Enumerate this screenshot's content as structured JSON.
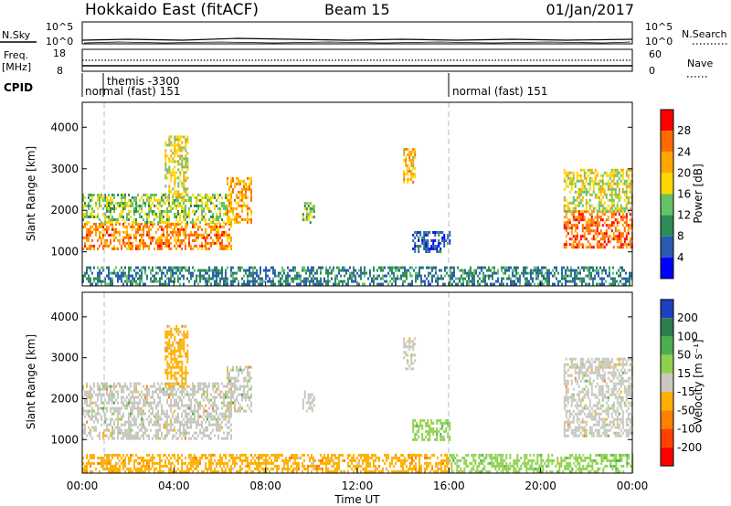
{
  "header": {
    "station": "Hokkaido East (fitACF)",
    "beam": "Beam 15",
    "date": "01/Jan/2017"
  },
  "summary_panels": {
    "nsky_label": "N.Sky",
    "nsky_ticks": [
      "10^5",
      "10^0"
    ],
    "nsky_right_ticks": [
      "10^5",
      "10^0"
    ],
    "nsearch_label": "N.Search",
    "freq_label": "Freq.",
    "freq_unit": "[MHz]",
    "freq_ticks": [
      "18",
      "8"
    ],
    "nave_ticks": [
      "60",
      "0"
    ],
    "nave_label": "Nave",
    "cpid_label": "CPID",
    "cpid_events": [
      {
        "time_h": 1.0,
        "text": "themis -3300"
      },
      {
        "time_h": 1.0,
        "text": "normal (fast) 151"
      },
      {
        "time_h": 16.0,
        "text": "normal (fast) 151"
      }
    ]
  },
  "chart_data": [
    {
      "type": "heatmap",
      "panel": "power",
      "ylabel": "Slant Range [km]",
      "xlabel": "",
      "ylim": [
        180,
        4600
      ],
      "xlim": [
        0,
        24
      ],
      "yticks": [
        1000,
        2000,
        3000,
        4000
      ],
      "colorbar": {
        "label": "Power [dB]",
        "ticks": [
          "4",
          "8",
          "12",
          "16",
          "20",
          "24",
          "28"
        ],
        "colors": [
          "#0000ff",
          "#2a5bb0",
          "#2e8b57",
          "#66c266",
          "#ffd700",
          "#ffa500",
          "#ff6a00",
          "#ff0000"
        ]
      },
      "regions": [
        {
          "t0": 0.0,
          "t1": 6.5,
          "r0": 1050,
          "r1": 1700,
          "value": 24
        },
        {
          "t0": 0.0,
          "t1": 6.5,
          "r0": 1700,
          "r1": 2400,
          "value": 15
        },
        {
          "t0": 3.6,
          "t1": 4.6,
          "r0": 2300,
          "r1": 3800,
          "value": 18
        },
        {
          "t0": 6.3,
          "t1": 7.4,
          "r0": 1700,
          "r1": 2800,
          "value": 22
        },
        {
          "t0": 9.6,
          "t1": 10.1,
          "r0": 1700,
          "r1": 2200,
          "value": 14
        },
        {
          "t0": 14.0,
          "t1": 14.5,
          "r0": 2700,
          "r1": 3500,
          "value": 20
        },
        {
          "t0": 14.4,
          "t1": 16.0,
          "r0": 1000,
          "r1": 1500,
          "value": 6
        },
        {
          "t0": 21.0,
          "t1": 24.0,
          "r0": 1100,
          "r1": 2000,
          "value": 26
        },
        {
          "t0": 21.0,
          "t1": 24.0,
          "r0": 2000,
          "r1": 3000,
          "value": 17
        },
        {
          "t0": 0.0,
          "t1": 24.0,
          "r0": 200,
          "r1": 650,
          "value": 9
        }
      ]
    },
    {
      "type": "heatmap",
      "panel": "velocity",
      "ylabel": "Slant Range [km]",
      "xlabel": "Time UT",
      "ylim": [
        180,
        4600
      ],
      "xlim": [
        0,
        24
      ],
      "yticks": [
        1000,
        2000,
        3000,
        4000
      ],
      "xticks": [
        "00:00",
        "04:00",
        "08:00",
        "12:00",
        "16:00",
        "20:00",
        "00:00"
      ],
      "colorbar": {
        "label": "Velocity [m s⁻¹]",
        "ticks": [
          "200",
          "100",
          "50",
          "15",
          "-15",
          "-50",
          "-100",
          "-200"
        ],
        "colors": [
          "#1f3fbf",
          "#2e7d4f",
          "#4cae4c",
          "#8fd14f",
          "#c8c8c0",
          "#ffb000",
          "#ff7f00",
          "#ff4000",
          "#ff0000"
        ]
      },
      "regions": [
        {
          "t0": 0.0,
          "t1": 6.5,
          "r0": 1050,
          "r1": 2400,
          "value": 0
        },
        {
          "t0": 3.6,
          "t1": 4.6,
          "r0": 2300,
          "r1": 3800,
          "value": -30
        },
        {
          "t0": 6.3,
          "t1": 7.4,
          "r0": 1700,
          "r1": 2800,
          "value": 0
        },
        {
          "t0": 9.6,
          "t1": 10.1,
          "r0": 1700,
          "r1": 2200,
          "value": 0
        },
        {
          "t0": 14.0,
          "t1": 14.5,
          "r0": 2700,
          "r1": 3500,
          "value": 0
        },
        {
          "t0": 14.4,
          "t1": 16.0,
          "r0": 1000,
          "r1": 1500,
          "value": 30
        },
        {
          "t0": 21.0,
          "t1": 24.0,
          "r0": 1100,
          "r1": 3000,
          "value": 0
        },
        {
          "t0": 0.0,
          "t1": 16.0,
          "r0": 200,
          "r1": 650,
          "value": -40
        },
        {
          "t0": 16.0,
          "t1": 24.0,
          "r0": 200,
          "r1": 650,
          "value": 40
        }
      ]
    }
  ]
}
